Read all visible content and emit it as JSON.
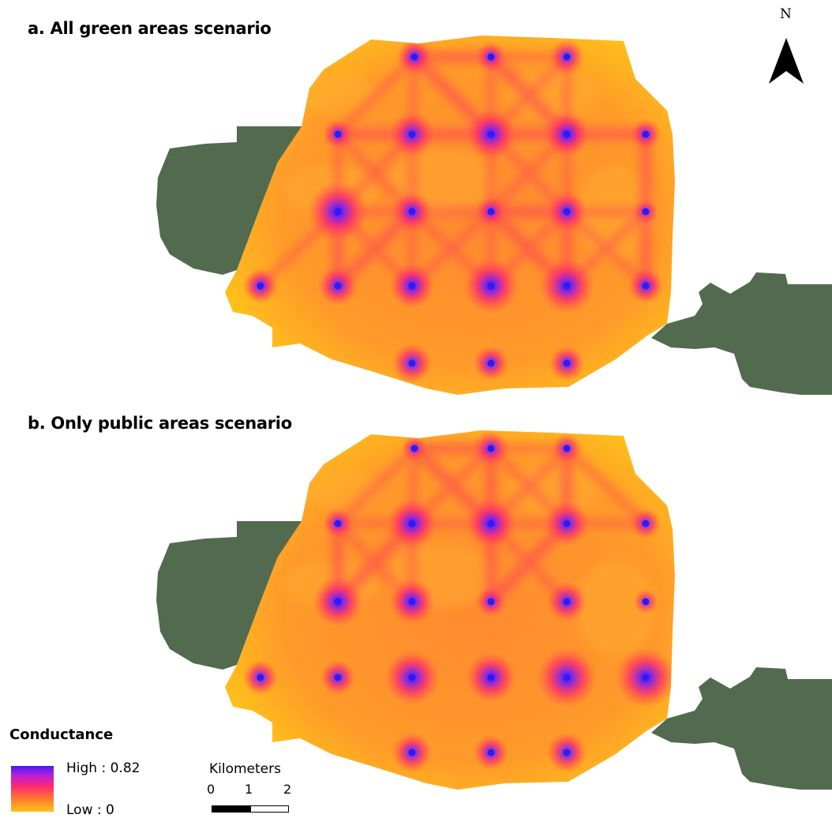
{
  "panels": [
    {
      "label": "a. All green areas scenario"
    },
    {
      "label": "b. Only public areas scenario"
    }
  ],
  "north_arrow": {
    "label": "N"
  },
  "legend": {
    "title": "Conductance",
    "high_label": "High : 0.82",
    "low_label": "Low : 0",
    "ramp_colors": [
      "#3a1cf0",
      "#b01ee0",
      "#ff2a6e",
      "#ff7a2e",
      "#ffc21a"
    ]
  },
  "scale_bar": {
    "unit": "Kilometers",
    "ticks": [
      "0",
      "1",
      "2"
    ]
  },
  "colors": {
    "green_area": "#526b4f",
    "conductance_base": "#ff9a2a",
    "conductance_edge": "#ffc21a",
    "corridor": "#ff3a5a",
    "node_core": "#2a1cff"
  }
}
